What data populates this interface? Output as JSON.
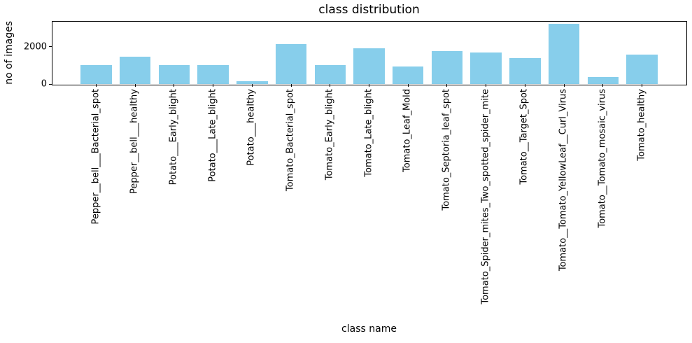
{
  "chart_data": {
    "type": "bar",
    "title": "class distribution",
    "xlabel": "class name",
    "ylabel": "no of images",
    "categories": [
      "Pepper__bell___Bacterial_spot",
      "Pepper__bell___healthy",
      "Potato___Early_blight",
      "Potato___Late_blight",
      "Potato___healthy",
      "Tomato_Bacterial_spot",
      "Tomato_Early_blight",
      "Tomato_Late_blight",
      "Tomato_Leaf_Mold",
      "Tomato_Septoria_leaf_spot",
      "Tomato_Spider_mites_Two_spotted_spider_mite",
      "Tomato__Target_Spot",
      "Tomato__Tomato_YellowLeaf__Curl_Virus",
      "Tomato__Tomato_mosaic_virus",
      "Tomato_healthy"
    ],
    "values": [
      997,
      1478,
      1000,
      1000,
      152,
      2127,
      1000,
      1909,
      952,
      1771,
      1676,
      1404,
      3209,
      373,
      1591
    ],
    "yticks": [
      0,
      2000
    ],
    "ylim": [
      0,
      3370
    ],
    "xlim": [
      -1.14,
      15.14
    ],
    "bar_width": 0.8,
    "bar_color": "#87CEEB",
    "axis_color": "#000000",
    "text_color": "#000000",
    "grid": false,
    "legend": null,
    "x_tick_label_rotation": 90
  }
}
